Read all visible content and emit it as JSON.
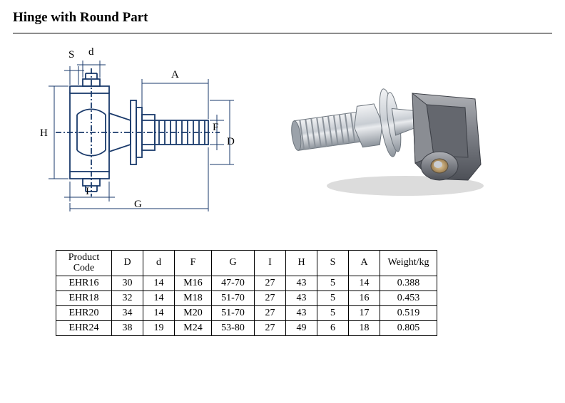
{
  "title": "Hinge with Round Part",
  "diagram": {
    "labels": {
      "S": "S",
      "d": "d",
      "A": "A",
      "H": "H",
      "I": "I",
      "G": "G",
      "F": "F",
      "D": "D"
    },
    "line_color": "#1a3a6b",
    "line_width": 1.5,
    "background": "#ffffff"
  },
  "photo": {
    "metal_light": "#e8e9eb",
    "metal_mid": "#b7bcc2",
    "metal_dark": "#6a7278",
    "cast_light": "#9a9ca0",
    "cast_dark": "#54565c",
    "bore": "#cfa96a"
  },
  "table": {
    "headers": [
      "Product\nCode",
      "D",
      "d",
      "F",
      "G",
      "I",
      "H",
      "S",
      "A",
      "Weight/kg"
    ],
    "rows": [
      [
        "EHR16",
        "30",
        "14",
        "M16",
        "47-70",
        "27",
        "43",
        "5",
        "14",
        "0.388"
      ],
      [
        "EHR18",
        "32",
        "14",
        "M18",
        "51-70",
        "27",
        "43",
        "5",
        "16",
        "0.453"
      ],
      [
        "EHR20",
        "34",
        "14",
        "M20",
        "51-70",
        "27",
        "43",
        "5",
        "17",
        "0.519"
      ],
      [
        "EHR24",
        "38",
        "19",
        "M24",
        "53-80",
        "27",
        "49",
        "6",
        "18",
        "0.805"
      ]
    ],
    "border_color": "#000000",
    "font_size": 14
  }
}
